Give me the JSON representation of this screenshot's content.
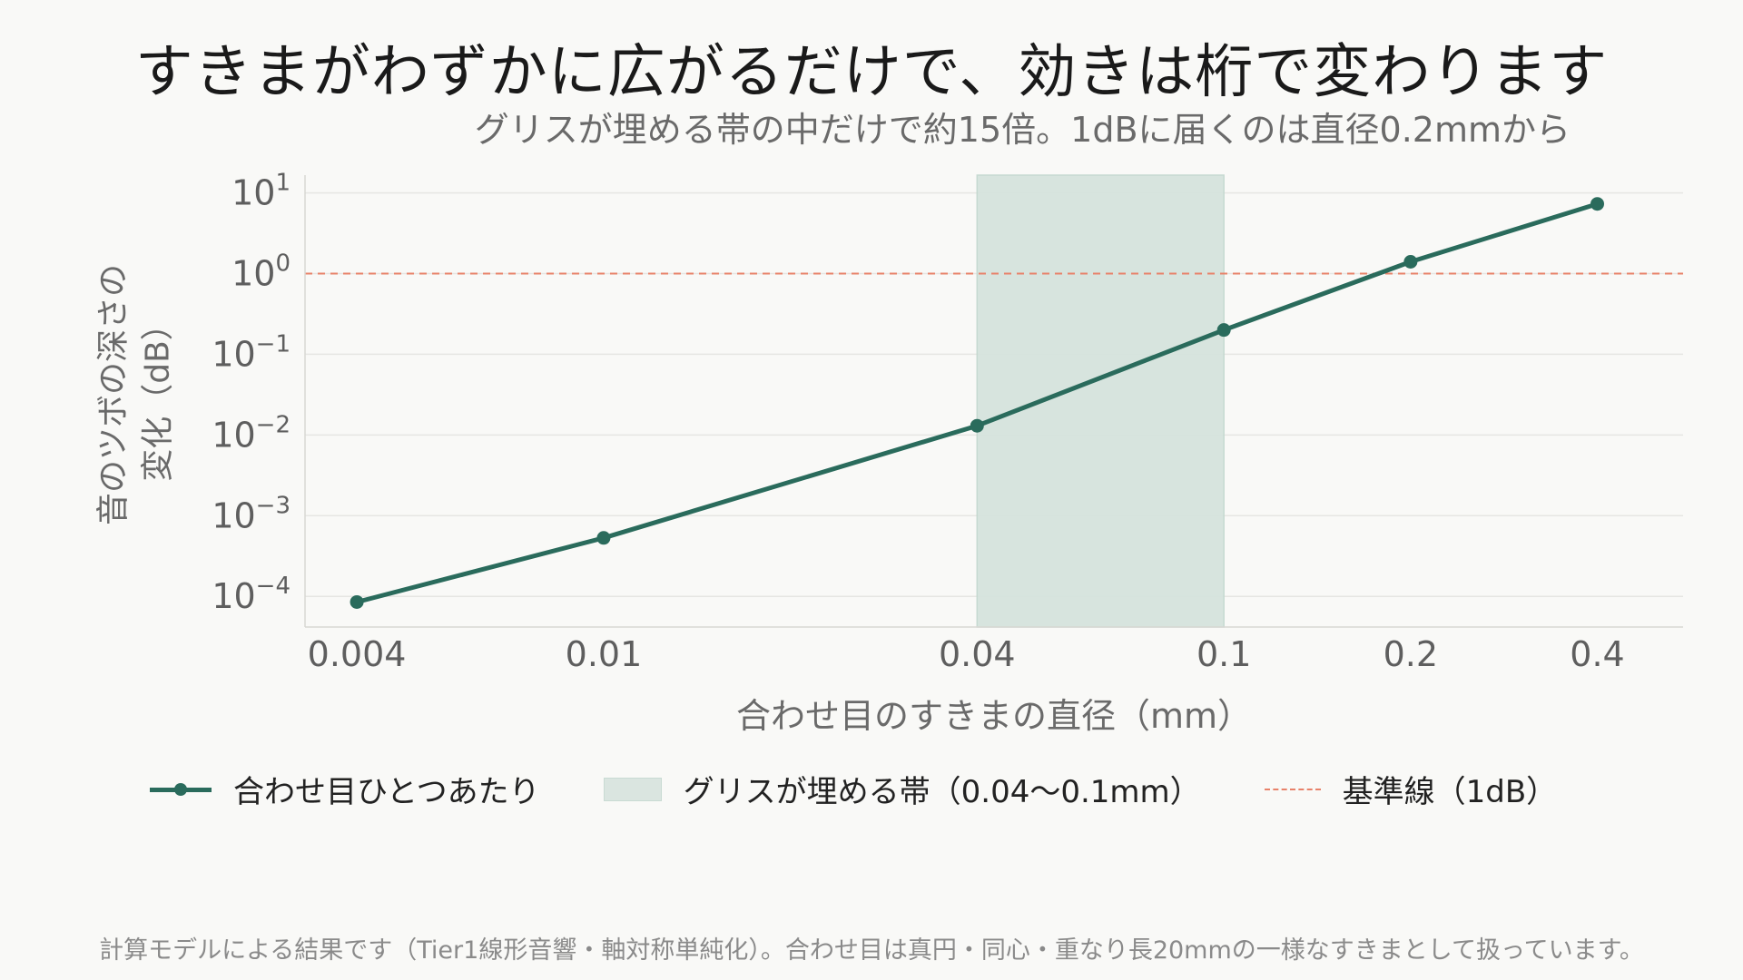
{
  "chart_data": {
    "type": "line",
    "title": "すきまがわずかに広がるだけで、効きは桁で変わります",
    "subtitle": "グリスが埋める帯の中だけで約15倍。1dBに届くのは直径0.2mmから",
    "xlabel": "合わせ目のすきまの直径（mm）",
    "ylabel_lines": [
      "音のツボの深さの",
      "変化（dB）"
    ],
    "x_scale": "log",
    "y_scale": "log",
    "xlim": [
      0.0033,
      0.55
    ],
    "ylim_log10": [
      -4.38,
      1.22
    ],
    "x_ticks": [
      {
        "value": 0.004,
        "label": "0.004"
      },
      {
        "value": 0.01,
        "label": "0.01"
      },
      {
        "value": 0.04,
        "label": "0.04"
      },
      {
        "value": 0.1,
        "label": "0.1"
      },
      {
        "value": 0.2,
        "label": "0.2"
      },
      {
        "value": 0.4,
        "label": "0.4"
      }
    ],
    "y_ticks": [
      {
        "exp": 1,
        "base": "10",
        "sup": "1"
      },
      {
        "exp": 0,
        "base": "10",
        "sup": "0"
      },
      {
        "exp": -1,
        "base": "10",
        "sup": "−1"
      },
      {
        "exp": -2,
        "base": "10",
        "sup": "−2"
      },
      {
        "exp": -3,
        "base": "10",
        "sup": "−3"
      },
      {
        "exp": -4,
        "base": "10",
        "sup": "−4"
      }
    ],
    "grid": "horizontal",
    "series": [
      {
        "name": "合わせ目ひとつあたり",
        "color": "#2a6b5c",
        "x": [
          0.004,
          0.01,
          0.04,
          0.1,
          0.2,
          0.4
        ],
        "y": [
          8.5e-05,
          0.00053,
          0.013,
          0.2,
          1.4,
          7.3
        ]
      }
    ],
    "band": {
      "name": "グリスが埋める帯（0.04〜0.1mm）",
      "x_from": 0.04,
      "x_to": 0.1,
      "color": "#d6e3dd"
    },
    "reference_line": {
      "name": "基準線（1dB）",
      "y": 1,
      "color": "#e8826a"
    },
    "legend_position": "bottom"
  },
  "legend": {
    "line_label": "合わせ目ひとつあたり",
    "band_label": "グリスが埋める帯（0.04〜0.1mm）",
    "ref_label": "基準線（1dB）"
  },
  "footnote": "計算モデルによる結果です（Tier1線形音響・軸対称単純化）。合わせ目は真円・同心・重なり長20mmの一様なすきまとして扱っています。"
}
